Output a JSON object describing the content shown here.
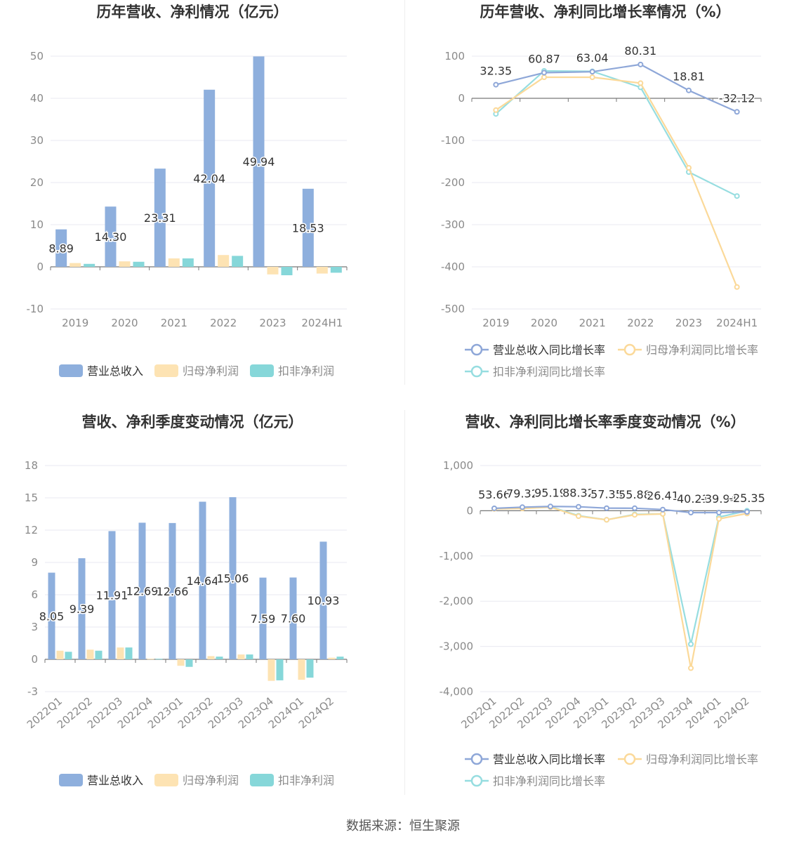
{
  "source_text": "数据来源：恒生聚源",
  "colors": {
    "revenue": "#8eafdd",
    "net_profit": "#fde3b3",
    "deducted_profit": "#86d7d9",
    "revenue_line": "#8ea7d8",
    "net_profit_line": "#fbd999",
    "deducted_profit_line": "#96dde0",
    "grid": "#e8eaf0",
    "axis_text": "#8a8a8a",
    "title_text": "#333333"
  },
  "chart_data": [
    {
      "type": "bar",
      "title": "历年营收、净利情况（亿元）",
      "categories": [
        "2019",
        "2020",
        "2021",
        "2022",
        "2023",
        "2024H1"
      ],
      "ylim": [
        -10,
        50
      ],
      "yticks": [
        -10,
        0,
        10,
        20,
        30,
        40,
        50
      ],
      "ytick_labels": [
        "-10",
        "0",
        "10",
        "20",
        "30",
        "40",
        "50"
      ],
      "grid": true,
      "legend_position": "bottom",
      "series": [
        {
          "name": "营业总收入",
          "values": [
            8.89,
            14.3,
            23.31,
            42.04,
            49.94,
            18.53
          ],
          "labels": [
            "8.89",
            "14.30",
            "23.31",
            "42.04",
            "49.94",
            "18.53"
          ]
        },
        {
          "name": "归母净利润",
          "values": [
            0.9,
            1.3,
            2.0,
            2.8,
            -1.8,
            -1.6
          ]
        },
        {
          "name": "扣非净利润",
          "values": [
            0.7,
            1.2,
            2.0,
            2.6,
            -2.0,
            -1.4
          ]
        }
      ]
    },
    {
      "type": "line",
      "title": "历年营收、净利同比增长率情况（%）",
      "categories": [
        "2019",
        "2020",
        "2021",
        "2022",
        "2023",
        "2024H1"
      ],
      "ylim": [
        -500,
        100
      ],
      "yticks": [
        -500,
        -400,
        -300,
        -200,
        -100,
        0,
        100
      ],
      "ytick_labels": [
        "-500",
        "-400",
        "-300",
        "-200",
        "-100",
        "0",
        "100"
      ],
      "grid": true,
      "legend_position": "bottom",
      "series": [
        {
          "name": "营业总收入同比增长率",
          "values": [
            32.35,
            60.87,
            63.04,
            80.31,
            18.81,
            -32.12
          ],
          "labels": [
            "32.35",
            "60.87",
            "63.04",
            "80.31",
            "18.81",
            "-32.12"
          ]
        },
        {
          "name": "归母净利润同比增长率",
          "values": [
            -28,
            50,
            50,
            36,
            -165,
            -448
          ]
        },
        {
          "name": "扣非净利润同比增长率",
          "values": [
            -37,
            65,
            64,
            26,
            -175,
            -232
          ]
        }
      ]
    },
    {
      "type": "bar",
      "title": "营收、净利季度变动情况（亿元）",
      "categories": [
        "2022Q1",
        "2022Q2",
        "2022Q3",
        "2022Q4",
        "2023Q1",
        "2023Q2",
        "2023Q3",
        "2023Q4",
        "2024Q1",
        "2024Q2"
      ],
      "ylim": [
        -3,
        18
      ],
      "yticks": [
        -3,
        0,
        3,
        6,
        9,
        12,
        15,
        18
      ],
      "ytick_labels": [
        "-3",
        "0",
        "3",
        "6",
        "9",
        "12",
        "15",
        "18"
      ],
      "grid": true,
      "legend_position": "bottom",
      "series": [
        {
          "name": "营业总收入",
          "values": [
            8.05,
            9.39,
            11.91,
            12.69,
            12.66,
            14.64,
            15.06,
            7.59,
            7.6,
            10.93
          ],
          "labels": [
            "8.05",
            "9.39",
            "11.91",
            "12.69",
            "12.66",
            "14.64",
            "15.06",
            "7.59",
            "7.60",
            "10.93"
          ]
        },
        {
          "name": "归母净利润",
          "values": [
            0.8,
            0.9,
            1.1,
            0.05,
            -0.6,
            0.3,
            0.45,
            -2.0,
            -1.9,
            0.15
          ]
        },
        {
          "name": "扣非净利润",
          "values": [
            0.7,
            0.8,
            1.1,
            0.05,
            -0.7,
            0.25,
            0.45,
            -1.95,
            -1.7,
            0.25
          ]
        }
      ]
    },
    {
      "type": "line",
      "title": "营收、净利同比增长率季度变动情况（%）",
      "categories": [
        "2022Q1",
        "2022Q2",
        "2022Q3",
        "2022Q4",
        "2023Q1",
        "2023Q2",
        "2023Q3",
        "2023Q4",
        "2024Q1",
        "2024Q2"
      ],
      "ylim": [
        -4000,
        1000
      ],
      "yticks": [
        -4000,
        -3000,
        -2000,
        -1000,
        0,
        1000
      ],
      "ytick_labels": [
        "-4,000",
        "-3,000",
        "-2,000",
        "-1,000",
        "0",
        "1,000"
      ],
      "grid": true,
      "legend_position": "bottom",
      "series": [
        {
          "name": "营业总收入同比增长率",
          "values": [
            53.66,
            79.32,
            95.19,
            88.32,
            57.35,
            55.88,
            26.41,
            -40.21,
            -39.94,
            -25.35
          ],
          "labels": [
            "53.66",
            "79.32",
            "95.19",
            "88.32",
            "57.35",
            "55.88",
            "26.41",
            "-40.21",
            "-39.94",
            "-25.35"
          ]
        },
        {
          "name": "归母净利润同比增长率",
          "values": [
            40,
            50,
            80,
            -120,
            -200,
            -90,
            -70,
            -3480,
            -180,
            -60
          ]
        },
        {
          "name": "扣非净利润同比增长率",
          "values": [
            50,
            60,
            90,
            -110,
            -200,
            -80,
            -70,
            -2950,
            -140,
            0
          ]
        }
      ]
    }
  ]
}
